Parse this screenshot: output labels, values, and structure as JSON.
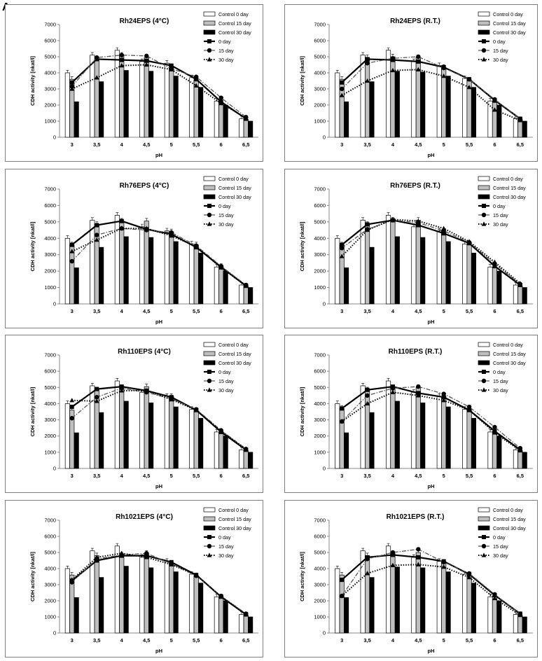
{
  "figure_label": "A",
  "chart_data": [
    {
      "type": "bar",
      "title": "Rh24EPS (4°C)",
      "xlabel": "pH",
      "ylabel": "CDH activity [nkat/l]",
      "categories": [
        "3",
        "3,5",
        "4",
        "4,5",
        "5",
        "5,5",
        "6",
        "6,5"
      ],
      "ylim": [
        0,
        7000
      ],
      "yticks": [
        "0",
        "1000",
        "2000",
        "3000",
        "4000",
        "5000",
        "6000",
        "7000"
      ],
      "legend_position": "top-right",
      "bar_series": [
        {
          "name": "Control 0 day",
          "values": [
            4000,
            5100,
            5400,
            4700,
            4600,
            3700,
            2250,
            1150
          ]
        },
        {
          "name": "Control 15 day",
          "values": [
            3600,
            4800,
            5100,
            4950,
            4350,
            3550,
            2150,
            1100
          ]
        },
        {
          "name": "Control 30 day",
          "values": [
            2200,
            3450,
            4150,
            4100,
            3800,
            3100,
            2000,
            1000
          ]
        }
      ],
      "line_series": [
        {
          "name": "0 day",
          "values": [
            3400,
            4850,
            4800,
            4750,
            4450,
            3600,
            2200,
            1150
          ]
        },
        {
          "name": "15 day",
          "values": [
            3150,
            4950,
            5100,
            5050,
            4250,
            3750,
            2450,
            1250
          ]
        },
        {
          "name": "30 day",
          "values": [
            3000,
            3700,
            4450,
            4500,
            4200,
            3200,
            2100,
            1200
          ]
        }
      ]
    },
    {
      "type": "bar",
      "title": "Rh24EPS (R.T.)",
      "xlabel": "pH",
      "ylabel": "CDH activity [nkat/l]",
      "categories": [
        "3",
        "3,5",
        "4",
        "4,5",
        "5",
        "5,5",
        "6",
        "6,5"
      ],
      "ylim": [
        0,
        7000
      ],
      "yticks": [
        "0",
        "1000",
        "2000",
        "3000",
        "4000",
        "5000",
        "6000",
        "7000"
      ],
      "legend_position": "top-right",
      "bar_series": [
        {
          "name": "Control 0 day",
          "values": [
            4000,
            5100,
            5400,
            4700,
            4450,
            3650,
            2250,
            1150
          ]
        },
        {
          "name": "Control 15 day",
          "values": [
            3600,
            4950,
            5000,
            4950,
            4350,
            3550,
            2150,
            1100
          ]
        },
        {
          "name": "Control 30 day",
          "values": [
            2200,
            3450,
            4100,
            4050,
            3800,
            3100,
            2000,
            1000
          ]
        }
      ],
      "line_series": [
        {
          "name": "0 day",
          "values": [
            3400,
            4850,
            4800,
            4700,
            4350,
            3600,
            2300,
            1150
          ]
        },
        {
          "name": "15 day",
          "values": [
            3000,
            4600,
            4900,
            5000,
            4300,
            3600,
            2350,
            1150
          ]
        },
        {
          "name": "30 day",
          "values": [
            2600,
            3500,
            4150,
            4200,
            3800,
            3100,
            1700,
            1050
          ]
        }
      ]
    },
    {
      "type": "bar",
      "title": "Rh76EPS (4°C)",
      "xlabel": "pH",
      "ylabel": "CDH activity [nkat/l]",
      "categories": [
        "3",
        "3,5",
        "4",
        "4,5",
        "5",
        "5,5",
        "6",
        "6,5"
      ],
      "ylim": [
        0,
        7000
      ],
      "yticks": [
        "0",
        "1000",
        "2000",
        "3000",
        "4000",
        "5000",
        "6000",
        "7000"
      ],
      "legend_position": "top-right",
      "bar_series": [
        {
          "name": "Control 0 day",
          "values": [
            4000,
            5100,
            5400,
            4700,
            4450,
            3650,
            2250,
            1150
          ]
        },
        {
          "name": "Control 15 day",
          "values": [
            3600,
            4850,
            5050,
            5050,
            4400,
            3600,
            2300,
            1100
          ]
        },
        {
          "name": "Control 30 day",
          "values": [
            2200,
            3450,
            4100,
            4050,
            3800,
            3100,
            2000,
            1000
          ]
        }
      ],
      "line_series": [
        {
          "name": "0 day",
          "values": [
            3600,
            4800,
            5050,
            4550,
            4250,
            3450,
            2250,
            1100
          ]
        },
        {
          "name": "15 day",
          "values": [
            2600,
            4200,
            4600,
            4500,
            4350,
            3550,
            2300,
            1150
          ]
        },
        {
          "name": "30 day",
          "values": [
            3200,
            3900,
            4600,
            4600,
            4150,
            3500,
            2200,
            1100
          ]
        }
      ]
    },
    {
      "type": "bar",
      "title": "Rh76EPS (R.T.)",
      "xlabel": "pH",
      "ylabel": "CDH activity [nkat/l]",
      "categories": [
        "3",
        "3,5",
        "4",
        "4,5",
        "5",
        "5,5",
        "6",
        "6,5"
      ],
      "ylim": [
        0,
        7000
      ],
      "yticks": [
        "0",
        "1000",
        "2000",
        "3000",
        "4000",
        "5000",
        "6000",
        "7000"
      ],
      "legend_position": "top-right",
      "bar_series": [
        {
          "name": "Control 0 day",
          "values": [
            4000,
            5100,
            5400,
            4700,
            4450,
            3650,
            2250,
            1150
          ]
        },
        {
          "name": "Control 15 day",
          "values": [
            3600,
            4850,
            5100,
            5100,
            4400,
            3600,
            2250,
            1100
          ]
        },
        {
          "name": "Control 30 day",
          "values": [
            2200,
            3450,
            4100,
            4050,
            3800,
            3100,
            2000,
            1000
          ]
        }
      ],
      "line_series": [
        {
          "name": "0 day",
          "values": [
            3600,
            4850,
            5100,
            4800,
            4300,
            3700,
            2300,
            1150
          ]
        },
        {
          "name": "15 day",
          "values": [
            3400,
            4550,
            5100,
            4950,
            4450,
            3750,
            2450,
            1200
          ]
        },
        {
          "name": "30 day",
          "values": [
            2900,
            4500,
            5150,
            5050,
            4600,
            3800,
            2550,
            1250
          ]
        }
      ]
    },
    {
      "type": "bar",
      "title": "Rh110EPS (4°C)",
      "xlabel": "pH",
      "ylabel": "CDH activity [nkat/l]",
      "categories": [
        "3",
        "3,5",
        "4",
        "4,5",
        "5",
        "5,5",
        "6",
        "6,5"
      ],
      "ylim": [
        0,
        7000
      ],
      "yticks": [
        "0",
        "1000",
        "2000",
        "3000",
        "4000",
        "5000",
        "6000",
        "7000"
      ],
      "legend_position": "top-right",
      "bar_series": [
        {
          "name": "Control 0 day",
          "values": [
            4000,
            5100,
            5400,
            4700,
            4450,
            3650,
            2250,
            1150
          ]
        },
        {
          "name": "Control 15 day",
          "values": [
            3600,
            4850,
            4950,
            5050,
            4450,
            3550,
            2250,
            1100
          ]
        },
        {
          "name": "Control 30 day",
          "values": [
            2200,
            3450,
            4150,
            4050,
            3800,
            3100,
            2000,
            1000
          ]
        }
      ],
      "line_series": [
        {
          "name": "0 day",
          "values": [
            3800,
            4900,
            5050,
            4800,
            4400,
            3600,
            2250,
            1150
          ]
        },
        {
          "name": "15 day",
          "values": [
            3100,
            4400,
            4950,
            4700,
            4300,
            3650,
            2350,
            1200
          ]
        },
        {
          "name": "30 day",
          "values": [
            4200,
            4150,
            4800,
            4800,
            4250,
            3600,
            2300,
            1200
          ]
        }
      ]
    },
    {
      "type": "bar",
      "title": "Rh110EPS (R.T.)",
      "xlabel": "pH",
      "ylabel": "CDH activity [nkat/l]",
      "categories": [
        "3",
        "3,5",
        "4",
        "4,5",
        "5",
        "5,5",
        "6",
        "6,5"
      ],
      "ylim": [
        0,
        7000
      ],
      "yticks": [
        "0",
        "1000",
        "2000",
        "3000",
        "4000",
        "5000",
        "6000",
        "7000"
      ],
      "legend_position": "top-right",
      "bar_series": [
        {
          "name": "Control 0 day",
          "values": [
            4000,
            5100,
            5400,
            4700,
            4450,
            3650,
            2250,
            1150
          ]
        },
        {
          "name": "Control 15 day",
          "values": [
            3700,
            4850,
            4950,
            5000,
            4450,
            3650,
            2250,
            1100
          ]
        },
        {
          "name": "Control 30 day",
          "values": [
            2200,
            3450,
            4150,
            4050,
            3800,
            3100,
            2000,
            1000
          ]
        }
      ],
      "line_series": [
        {
          "name": "0 day",
          "values": [
            3700,
            4850,
            5050,
            4650,
            4400,
            3600,
            2300,
            1150
          ]
        },
        {
          "name": "15 day",
          "values": [
            2900,
            4500,
            4950,
            5050,
            4600,
            3800,
            2550,
            1250
          ]
        },
        {
          "name": "30 day",
          "values": [
            2900,
            4000,
            4700,
            4500,
            4200,
            3600,
            2200,
            1100
          ]
        }
      ]
    },
    {
      "type": "bar",
      "title": "Rh1021EPS (4°C)",
      "xlabel": "pH",
      "ylabel": "CDH activity [nkat/l]",
      "categories": [
        "3",
        "3,5",
        "4",
        "4,5",
        "5",
        "5,5",
        "6",
        "6,5"
      ],
      "ylim": [
        0,
        7000
      ],
      "yticks": [
        "0",
        "1000",
        "2000",
        "3000",
        "4000",
        "5000",
        "6000",
        "7000"
      ],
      "legend_position": "top-right",
      "bar_series": [
        {
          "name": "Control 0 day",
          "values": [
            4000,
            5100,
            5400,
            4700,
            4450,
            3650,
            2250,
            1150
          ]
        },
        {
          "name": "Control 15 day",
          "values": [
            3600,
            4800,
            4850,
            4950,
            4350,
            3550,
            2250,
            1100
          ]
        },
        {
          "name": "Control 30 day",
          "values": [
            2200,
            3450,
            4150,
            4050,
            3800,
            3100,
            2000,
            1000
          ]
        }
      ],
      "line_series": [
        {
          "name": "0 day",
          "values": [
            3250,
            4500,
            4800,
            4800,
            4400,
            3600,
            2250,
            1150
          ]
        },
        {
          "name": "15 day",
          "values": [
            3150,
            4600,
            4850,
            4950,
            4300,
            3550,
            2300,
            1200
          ]
        },
        {
          "name": "30 day",
          "values": [
            3300,
            4700,
            4950,
            4700,
            4250,
            3600,
            2250,
            1150
          ]
        }
      ]
    },
    {
      "type": "bar",
      "title": "Rh1021EPS (R.T.)",
      "xlabel": "pH",
      "ylabel": "CDH activity [nkat/l]",
      "categories": [
        "3",
        "3,5",
        "4",
        "4,5",
        "5",
        "5,5",
        "6",
        "6,5"
      ],
      "ylim": [
        0,
        7000
      ],
      "yticks": [
        "0",
        "1000",
        "2000",
        "3000",
        "4000",
        "5000",
        "6000",
        "7000"
      ],
      "legend_position": "top-right",
      "bar_series": [
        {
          "name": "Control 0 day",
          "values": [
            4000,
            5100,
            5400,
            4700,
            4450,
            3650,
            2250,
            1150
          ]
        },
        {
          "name": "Control 15 day",
          "values": [
            3600,
            4800,
            4950,
            5000,
            4400,
            3600,
            2300,
            1100
          ]
        },
        {
          "name": "Control 30 day",
          "values": [
            2200,
            3450,
            4100,
            4050,
            3800,
            3100,
            2000,
            1000
          ]
        }
      ],
      "line_series": [
        {
          "name": "0 day",
          "values": [
            3300,
            4700,
            4850,
            4700,
            4450,
            3650,
            2350,
            1200
          ]
        },
        {
          "name": "15 day",
          "values": [
            2300,
            4600,
            5000,
            5200,
            4400,
            3700,
            2400,
            1200
          ]
        },
        {
          "name": "30 day",
          "values": [
            2300,
            3700,
            4200,
            4250,
            4100,
            3450,
            2150,
            1100
          ]
        }
      ]
    }
  ]
}
